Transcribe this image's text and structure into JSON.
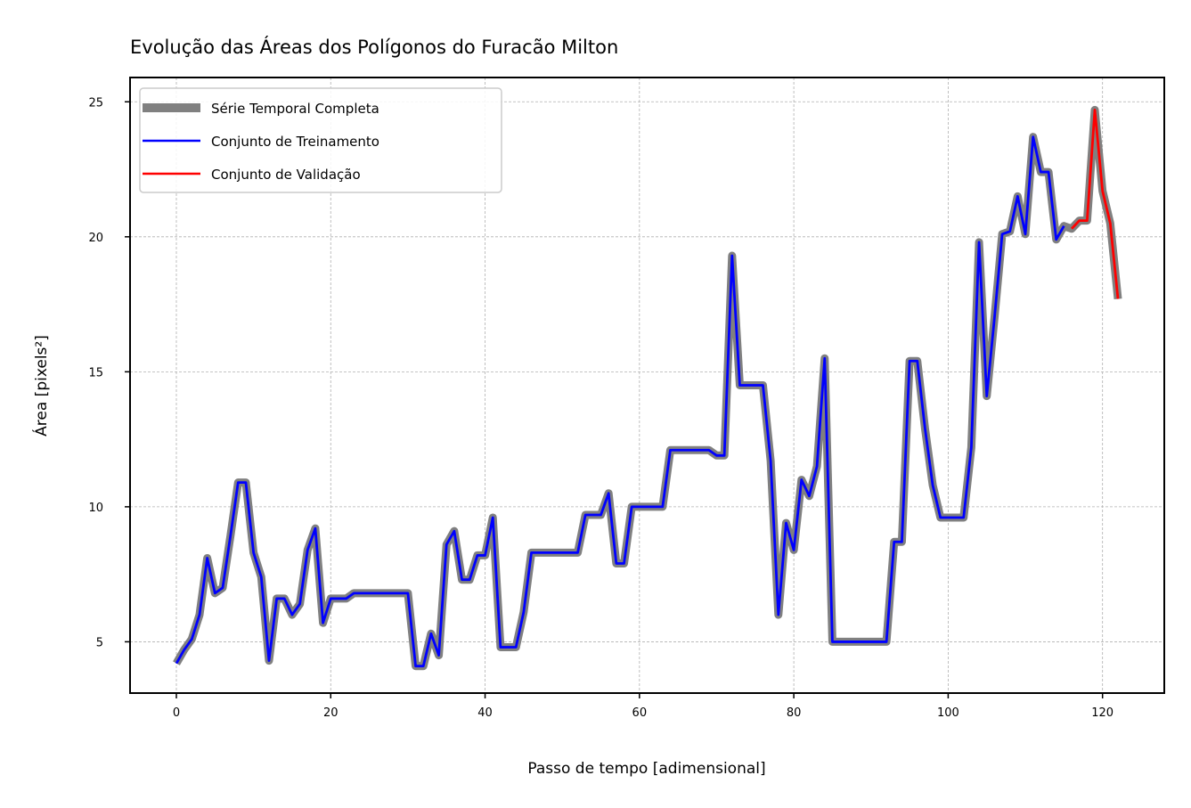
{
  "chart_data": {
    "type": "line",
    "title": "Evolução das Áreas dos Polígonos do Furacão Milton",
    "xlabel": "Passo de tempo [adimensional]",
    "ylabel": "Área [pixels²]",
    "xlim": [
      -6,
      128
    ],
    "ylim": [
      3.1,
      25.9
    ],
    "xticks": [
      0,
      20,
      40,
      60,
      80,
      100,
      120
    ],
    "yticks": [
      5,
      10,
      15,
      20,
      25
    ],
    "grid": true,
    "legend_position": "upper-left",
    "series": [
      {
        "name": "Série Temporal Completa",
        "color": "#808080",
        "x_start": 0,
        "values": [
          4.2,
          4.7,
          5.1,
          6.0,
          8.1,
          6.8,
          7.0,
          8.9,
          10.9,
          10.9,
          8.3,
          7.4,
          4.3,
          6.6,
          6.6,
          6.0,
          6.4,
          8.4,
          9.2,
          5.7,
          6.6,
          6.6,
          6.6,
          6.8,
          6.8,
          6.8,
          6.8,
          6.8,
          6.8,
          6.8,
          6.8,
          4.1,
          4.1,
          5.3,
          4.5,
          8.6,
          9.1,
          7.3,
          7.3,
          8.2,
          8.2,
          9.6,
          4.8,
          4.8,
          4.8,
          6.1,
          8.3,
          8.3,
          8.3,
          8.3,
          8.3,
          8.3,
          8.3,
          9.7,
          9.7,
          9.7,
          10.5,
          7.9,
          7.9,
          10.0,
          10.0,
          10.0,
          10.0,
          10.0,
          12.1,
          12.1,
          12.1,
          12.1,
          12.1,
          12.1,
          11.9,
          11.9,
          19.3,
          14.5,
          14.5,
          14.5,
          14.5,
          11.7,
          6.0,
          9.4,
          8.4,
          11.0,
          10.4,
          11.5,
          15.5,
          5.0,
          5.0,
          5.0,
          5.0,
          5.0,
          5.0,
          5.0,
          5.0,
          8.7,
          8.7,
          15.4,
          15.4,
          12.9,
          10.8,
          9.6,
          9.6,
          9.6,
          9.6,
          12.2,
          19.8,
          14.1,
          17.0,
          20.1,
          20.2,
          21.5,
          20.1,
          23.7,
          22.4,
          22.4,
          19.9,
          20.4,
          20.3,
          20.6,
          20.6,
          24.7,
          21.7,
          20.5,
          17.7
        ]
      },
      {
        "name": "Conjunto de Treinamento",
        "color": "#0000ff",
        "x_start": 0,
        "values": [
          4.2,
          4.7,
          5.1,
          6.0,
          8.1,
          6.8,
          7.0,
          8.9,
          10.9,
          10.9,
          8.3,
          7.4,
          4.3,
          6.6,
          6.6,
          6.0,
          6.4,
          8.4,
          9.2,
          5.7,
          6.6,
          6.6,
          6.6,
          6.8,
          6.8,
          6.8,
          6.8,
          6.8,
          6.8,
          6.8,
          6.8,
          4.1,
          4.1,
          5.3,
          4.5,
          8.6,
          9.1,
          7.3,
          7.3,
          8.2,
          8.2,
          9.6,
          4.8,
          4.8,
          4.8,
          6.1,
          8.3,
          8.3,
          8.3,
          8.3,
          8.3,
          8.3,
          8.3,
          9.7,
          9.7,
          9.7,
          10.5,
          7.9,
          7.9,
          10.0,
          10.0,
          10.0,
          10.0,
          10.0,
          12.1,
          12.1,
          12.1,
          12.1,
          12.1,
          12.1,
          11.9,
          11.9,
          19.3,
          14.5,
          14.5,
          14.5,
          14.5,
          11.7,
          6.0,
          9.4,
          8.4,
          11.0,
          10.4,
          11.5,
          15.5,
          5.0,
          5.0,
          5.0,
          5.0,
          5.0,
          5.0,
          5.0,
          5.0,
          8.7,
          8.7,
          15.4,
          15.4,
          12.9,
          10.8,
          9.6,
          9.6,
          9.6,
          9.6,
          12.2,
          19.8,
          14.1,
          17.0,
          20.1,
          20.2,
          21.5,
          20.1,
          23.7,
          22.4,
          22.4,
          19.9,
          20.4
        ]
      },
      {
        "name": "Conjunto de Validação",
        "color": "#ff0000",
        "x_start": 116,
        "values": [
          20.3,
          20.6,
          20.6,
          24.7,
          21.7,
          20.5,
          17.7
        ]
      }
    ]
  }
}
